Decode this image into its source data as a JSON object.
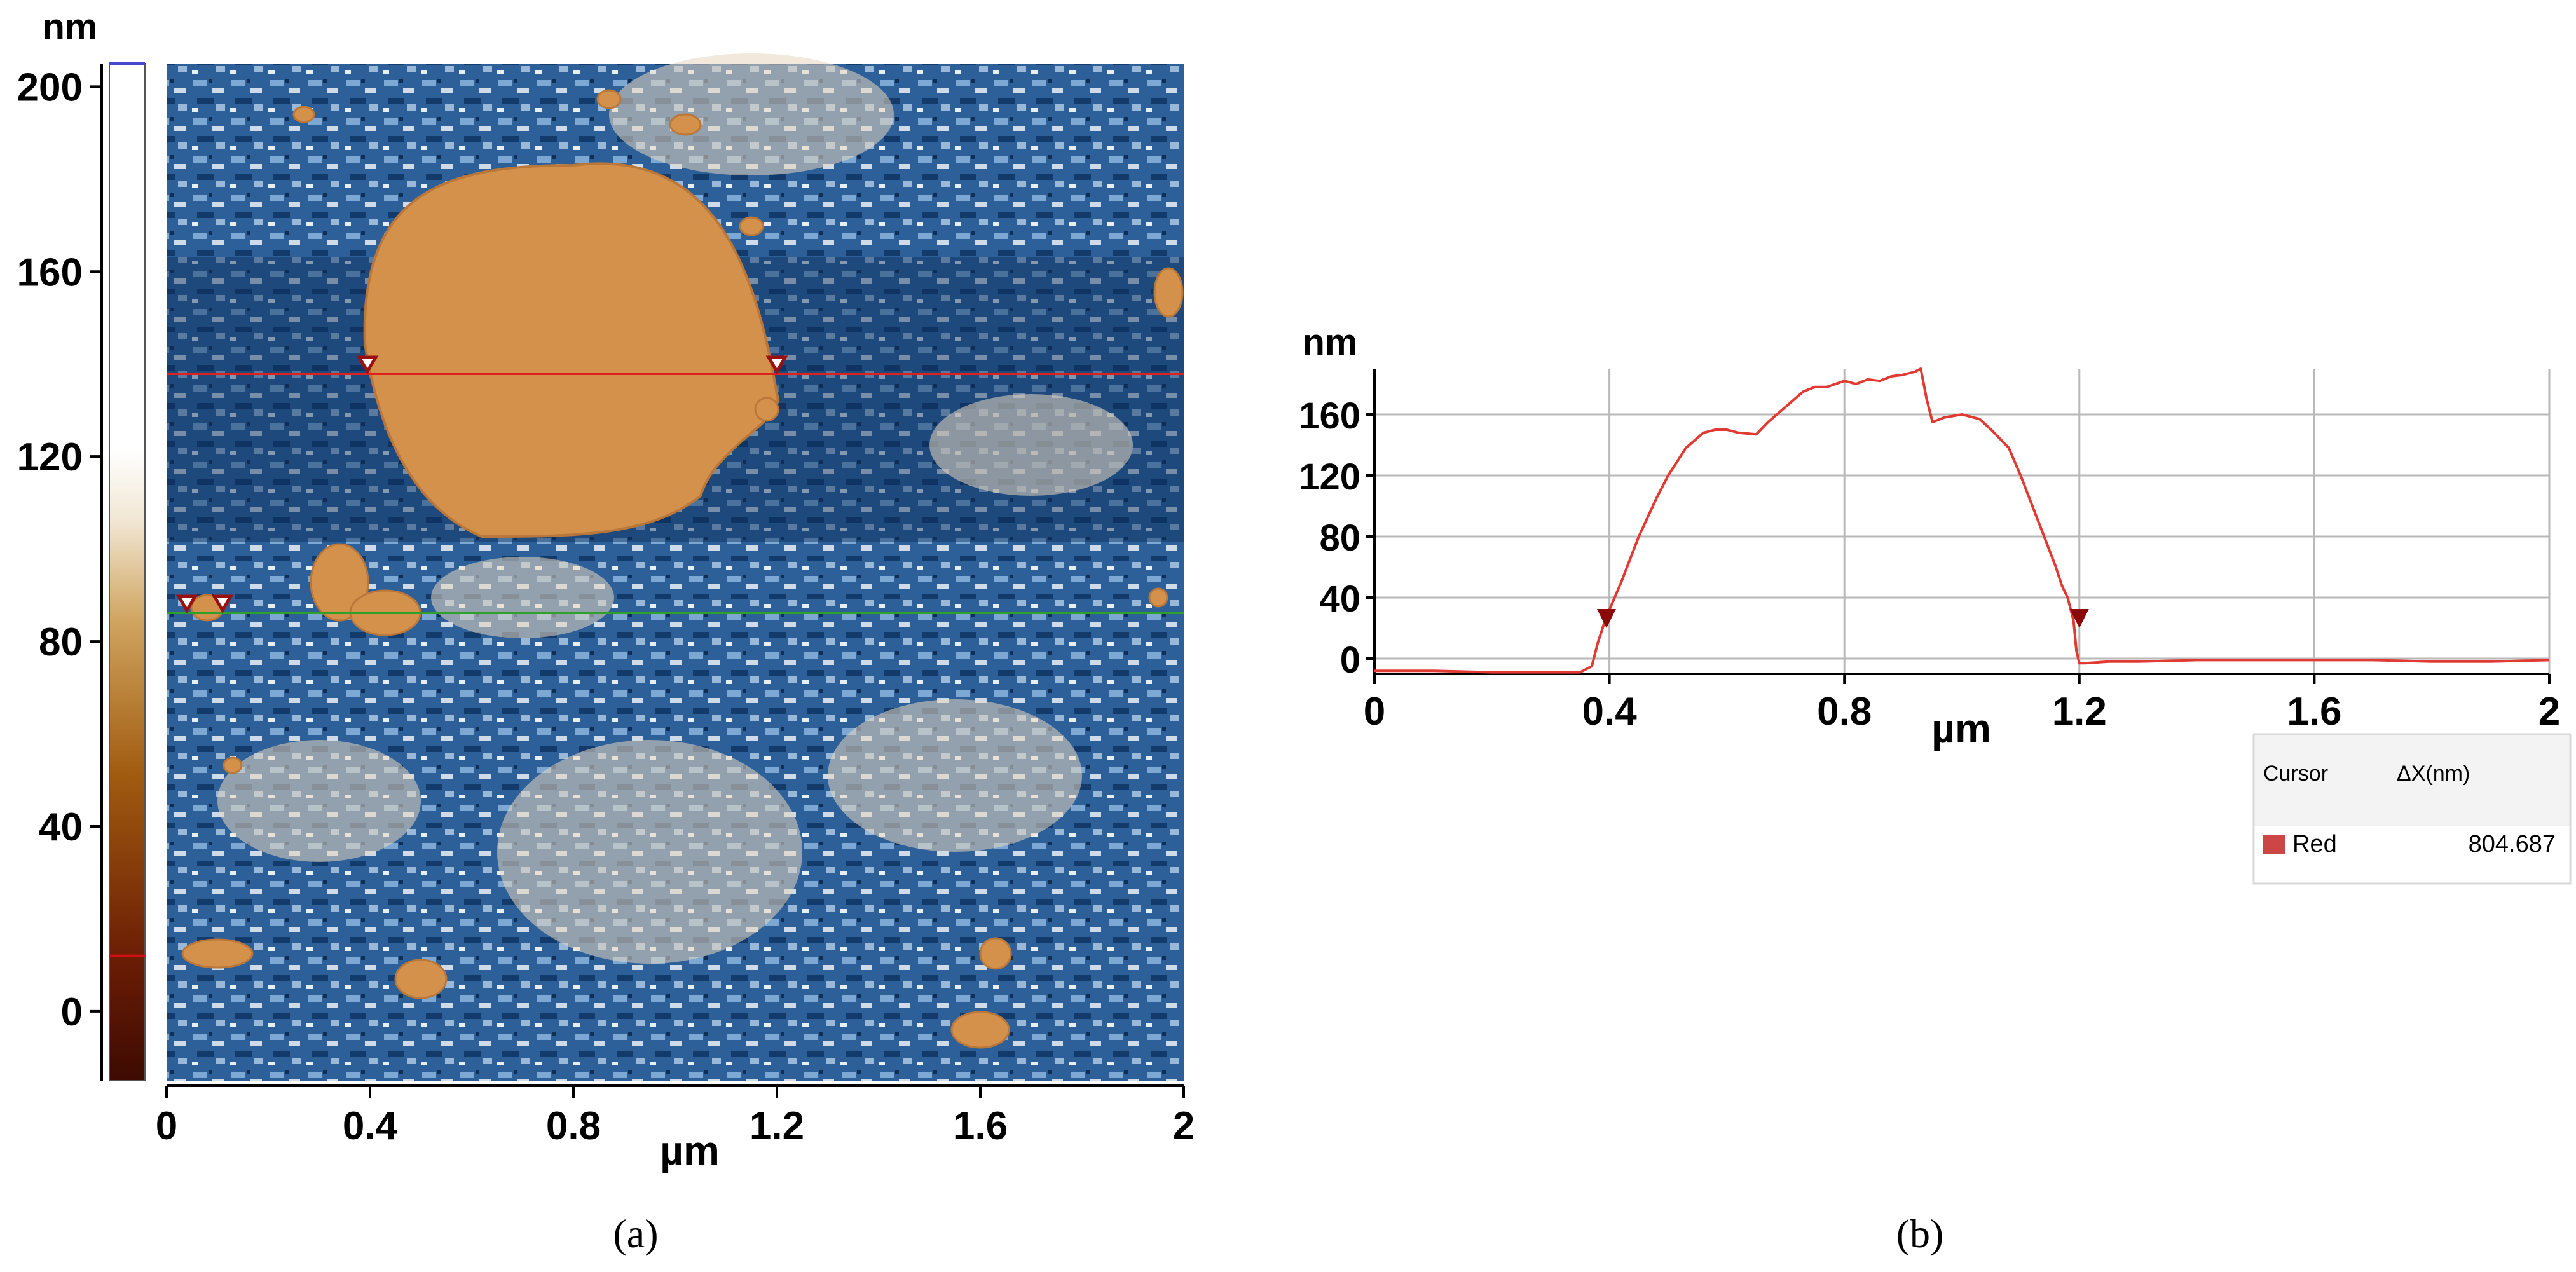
{
  "chart_data": [
    {
      "type": "heatmap",
      "caption": "(a)",
      "xlabel": "µm",
      "xlim": [
        0,
        2
      ],
      "xticks": [
        0,
        0.4,
        0.8,
        1.2,
        1.6,
        2
      ],
      "xtick_labels": [
        "0",
        "0.4",
        "0.8",
        "1.2",
        "1.6",
        "2"
      ],
      "colorbar": {
        "unit": "nm",
        "range": [
          -15,
          205
        ],
        "ticks": [
          0,
          40,
          80,
          120,
          160,
          200
        ],
        "tick_labels": [
          "0",
          "40",
          "80",
          "120",
          "160",
          "200"
        ]
      },
      "profile_lines": [
        {
          "color": "#e0201a",
          "y_um": 1.39,
          "markers_x_um": [
            0.395,
            1.2
          ]
        },
        {
          "color": "#2fa02a",
          "y_um": 0.92,
          "markers_x_um": [
            0.04,
            0.11
          ]
        }
      ],
      "colors": {
        "low": "#1d4f86",
        "mid": "#7fa9cf",
        "high": "#d39a55",
        "grain": "#cf8d47"
      }
    },
    {
      "type": "line",
      "caption": "(b)",
      "ylabel": "nm",
      "xlabel": "µm",
      "xlim": [
        0,
        2
      ],
      "ylim": [
        -10,
        190
      ],
      "xticks": [
        0,
        0.4,
        0.8,
        1.2,
        1.6,
        2
      ],
      "xtick_labels": [
        "0",
        "0.4",
        "0.8",
        "1.2",
        "1.6",
        "2"
      ],
      "yticks": [
        0,
        40,
        80,
        120,
        160
      ],
      "ytick_labels": [
        "0",
        "40",
        "80",
        "120",
        "160"
      ],
      "series": [
        {
          "color": "#e03a32",
          "x": [
            0,
            0.1,
            0.2,
            0.3,
            0.35,
            0.37,
            0.38,
            0.39,
            0.4,
            0.42,
            0.45,
            0.48,
            0.5,
            0.53,
            0.56,
            0.58,
            0.6,
            0.62,
            0.65,
            0.67,
            0.7,
            0.73,
            0.75,
            0.77,
            0.8,
            0.82,
            0.84,
            0.86,
            0.88,
            0.9,
            0.92,
            0.93,
            0.94,
            0.95,
            0.97,
            1.0,
            1.03,
            1.05,
            1.08,
            1.1,
            1.12,
            1.14,
            1.16,
            1.17,
            1.18,
            1.19,
            1.195,
            1.2,
            1.21,
            1.25,
            1.3,
            1.4,
            1.5,
            1.6,
            1.7,
            1.8,
            1.9,
            2.0
          ],
          "y": [
            -8,
            -8,
            -9,
            -9,
            -9,
            -5,
            10,
            22,
            32,
            50,
            80,
            105,
            120,
            138,
            148,
            150,
            150,
            148,
            147,
            155,
            165,
            175,
            178,
            178,
            182,
            180,
            183,
            182,
            185,
            186,
            188,
            190,
            170,
            155,
            158,
            160,
            157,
            150,
            138,
            120,
            100,
            80,
            60,
            48,
            40,
            25,
            5,
            -3,
            -3,
            -2,
            -2,
            -1,
            -1,
            -1,
            -1,
            -2,
            -2,
            -1
          ]
        }
      ],
      "cursor_markers_x": [
        0.395,
        1.2
      ],
      "cursor_table": {
        "headers": [
          "Cursor",
          "ΔX(nm)"
        ],
        "rows": [
          {
            "name": "Red",
            "color": "#cd4646",
            "value": "804.687"
          }
        ]
      }
    }
  ]
}
